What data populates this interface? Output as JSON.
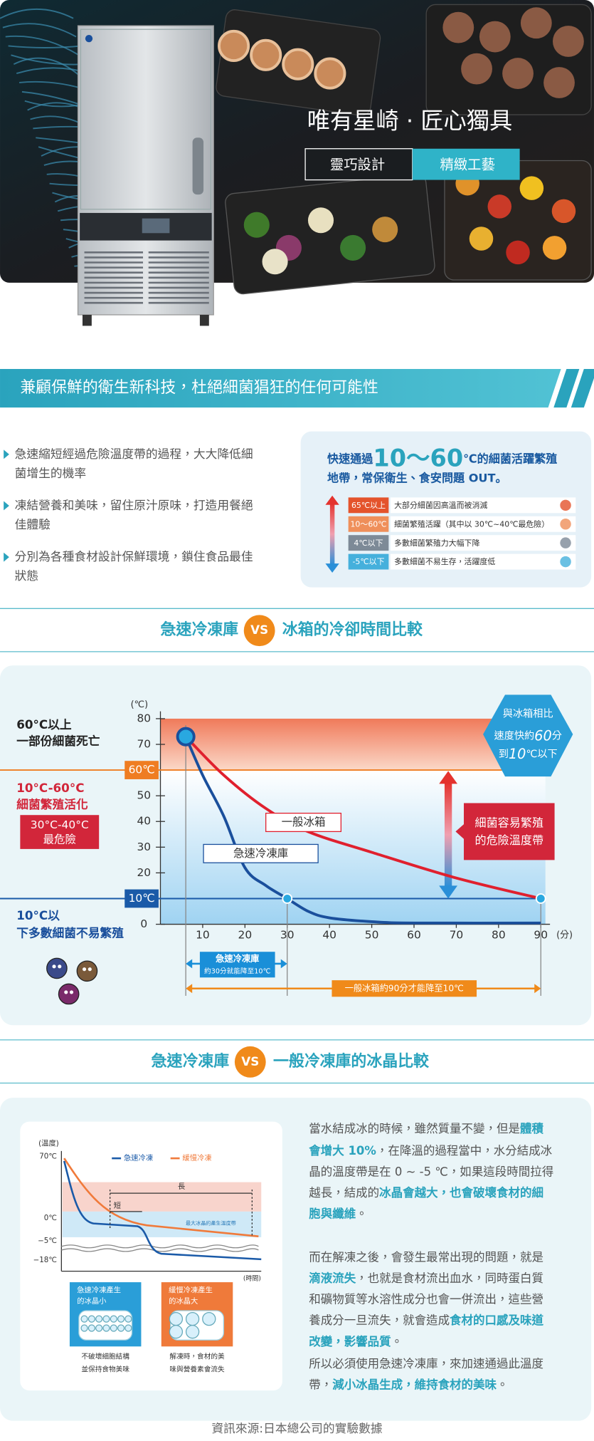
{
  "hero": {
    "title": "唯有星崎 · 匠心獨具",
    "tags": [
      "靈巧設計",
      "精緻工藝"
    ]
  },
  "banner": "兼顧保鮮的衛生新科技，杜絕細菌猖狂的任何可能性",
  "bullets": [
    [
      "急速縮短經過危險溫度帶的過程，大大降低細",
      "菌增生的機率"
    ],
    [
      "凍結營養和美味，留住原汁原味，打造用餐絕",
      "佳體驗"
    ],
    [
      "分別為各種食材設計保鮮環境，鎖住食品最佳",
      "狀態"
    ]
  ],
  "danger_box": {
    "headline": [
      [
        "快速通過",
        {
          "text": "10～60",
          "accent": true
        },
        "℃的細菌活躍繁殖"
      ],
      [
        "地帶，常保衛生、食安問題 OUT。"
      ]
    ],
    "rows": [
      {
        "tag": "65℃以上",
        "text": "大部分細菌因高溫而被消滅",
        "color": "#e4532c"
      },
      {
        "tag": "10～60℃",
        "text": "細菌繁殖活躍（其中以 30℃~40℃最危險）",
        "color": "#ef8f5a"
      },
      {
        "tag": "4℃以下",
        "text": "多數細菌繁殖力大幅下降",
        "color": "#7d8a97"
      },
      {
        "tag": "-5℃以下",
        "text": "多數細菌不易生存，活躍度低",
        "color": "#45b0dc"
      }
    ]
  },
  "cooling": {
    "title_left": "急速冷凍庫",
    "vs": "VS",
    "title_right": "冰箱的冷卻時間比較",
    "chart": {
      "type": "line",
      "y_unit": "(℃)",
      "x_unit": "(分)",
      "ylim": [
        0,
        80
      ],
      "yticks": [
        0,
        10,
        20,
        30,
        40,
        50,
        60,
        70,
        80
      ],
      "xlim": [
        0,
        90
      ],
      "xticks": [
        10,
        20,
        30,
        40,
        50,
        60,
        70,
        80,
        90
      ],
      "series": [
        {
          "name": "急速冷凍庫",
          "color": "#1a4f9c",
          "x": [
            6,
            10,
            15,
            20,
            25,
            30,
            35,
            40,
            50,
            60,
            90
          ],
          "values": [
            73,
            58,
            42,
            22,
            15,
            10,
            5,
            2.5,
            1,
            0.5,
            0.5
          ]
        },
        {
          "name": "一般冰箱",
          "color": "#e0202e",
          "x": [
            6,
            15,
            25,
            35,
            50,
            70,
            90
          ],
          "values": [
            73,
            58,
            45,
            36,
            28,
            18,
            10
          ]
        }
      ],
      "zone_marks": [
        {
          "value": 60,
          "label": "60℃",
          "color": "#ef7d22"
        },
        {
          "value": 10,
          "label": "10℃",
          "color": "#1a5aa8"
        }
      ],
      "zone_labels": {
        "top": [
          "60°C以上",
          "一部份細菌死亡"
        ],
        "middle": [
          "10°C-60°C",
          "細菌繁殖活化"
        ],
        "worst": [
          "30°C-40°C",
          "最危險"
        ],
        "bottom": [
          "10°C以",
          "下多數細菌不易繁殖"
        ]
      },
      "callout": [
        [
          "與冰箱相比"
        ],
        [
          "速度快約",
          {
            "text": "60",
            "accent": true
          },
          "分"
        ],
        [
          "到",
          {
            "text": "10",
            "accent": true
          },
          "℃以下"
        ]
      ],
      "danger_note": [
        "細菌容易繁殖",
        "的危險溫度帶"
      ],
      "fast_note": [
        "急速冷凍庫",
        "約30分就能降至10℃"
      ],
      "slow_note": "一般冰箱約90分才能降至10℃"
    }
  },
  "crystal": {
    "title_left": "急速冷凍庫",
    "vs": "VS",
    "title_right": "一般冷凍庫的冰晶比較",
    "diagram": {
      "y_unit": "(溫度)",
      "x_unit": "(時間)",
      "y_labels": [
        "70℃",
        "0℃",
        "−5℃",
        "−18℃"
      ],
      "legend": [
        "急速冷凍",
        "緩慢冷凍"
      ],
      "long": "長",
      "short": "短",
      "band": "最大冰晶的產生溫度帶",
      "fast_box": [
        "急速冷凍產生",
        "的冰晶小"
      ],
      "slow_box": [
        "緩慢冷凍產生",
        "的冰晶大"
      ],
      "fast_caption": [
        "不破壞細胞結構",
        "並保持食物美味"
      ],
      "slow_caption": [
        "解凍時，食材的美",
        "味與營養素會流失"
      ]
    },
    "lines": [
      [
        "當水結成冰的時候，雖然質量不變，但是",
        {
          "text": "體積",
          "accent": true
        }
      ],
      [
        {
          "text": "會增大 10%",
          "accent": true
        },
        "，在降溫的過程當中，水分結成冰"
      ],
      [
        "晶的溫度帶是在 0 ~ -5 ℃，如果這段時間拉得"
      ],
      [
        "越長，結成的",
        {
          "text": "冰晶會越大，也會破壞食材的細",
          "accent": true
        }
      ],
      [
        {
          "text": "胞與纖維",
          "accent": true
        },
        "。"
      ],
      [
        "而在解凍之後，會發生最常出現的問題，就是"
      ],
      [
        {
          "text": "滴液流失",
          "accent": true
        },
        "，也就是食材流出血水，同時蛋白質"
      ],
      [
        "和礦物質等水溶性成分也會一併流出，這些營"
      ],
      [
        "養成分一旦流失，就會造成",
        {
          "text": "食材的口感及味道",
          "accent": true
        }
      ],
      [
        {
          "text": "改變，影響品質",
          "accent": true
        },
        "。"
      ],
      [
        "所以必須使用急速冷凍庫，來加速通過此溫度"
      ],
      [
        "帶，",
        {
          "text": "減小冰晶生成，維持食材的美味",
          "accent": true
        },
        "。"
      ]
    ]
  },
  "source": "資訊來源:日本總公司的實驗數據"
}
